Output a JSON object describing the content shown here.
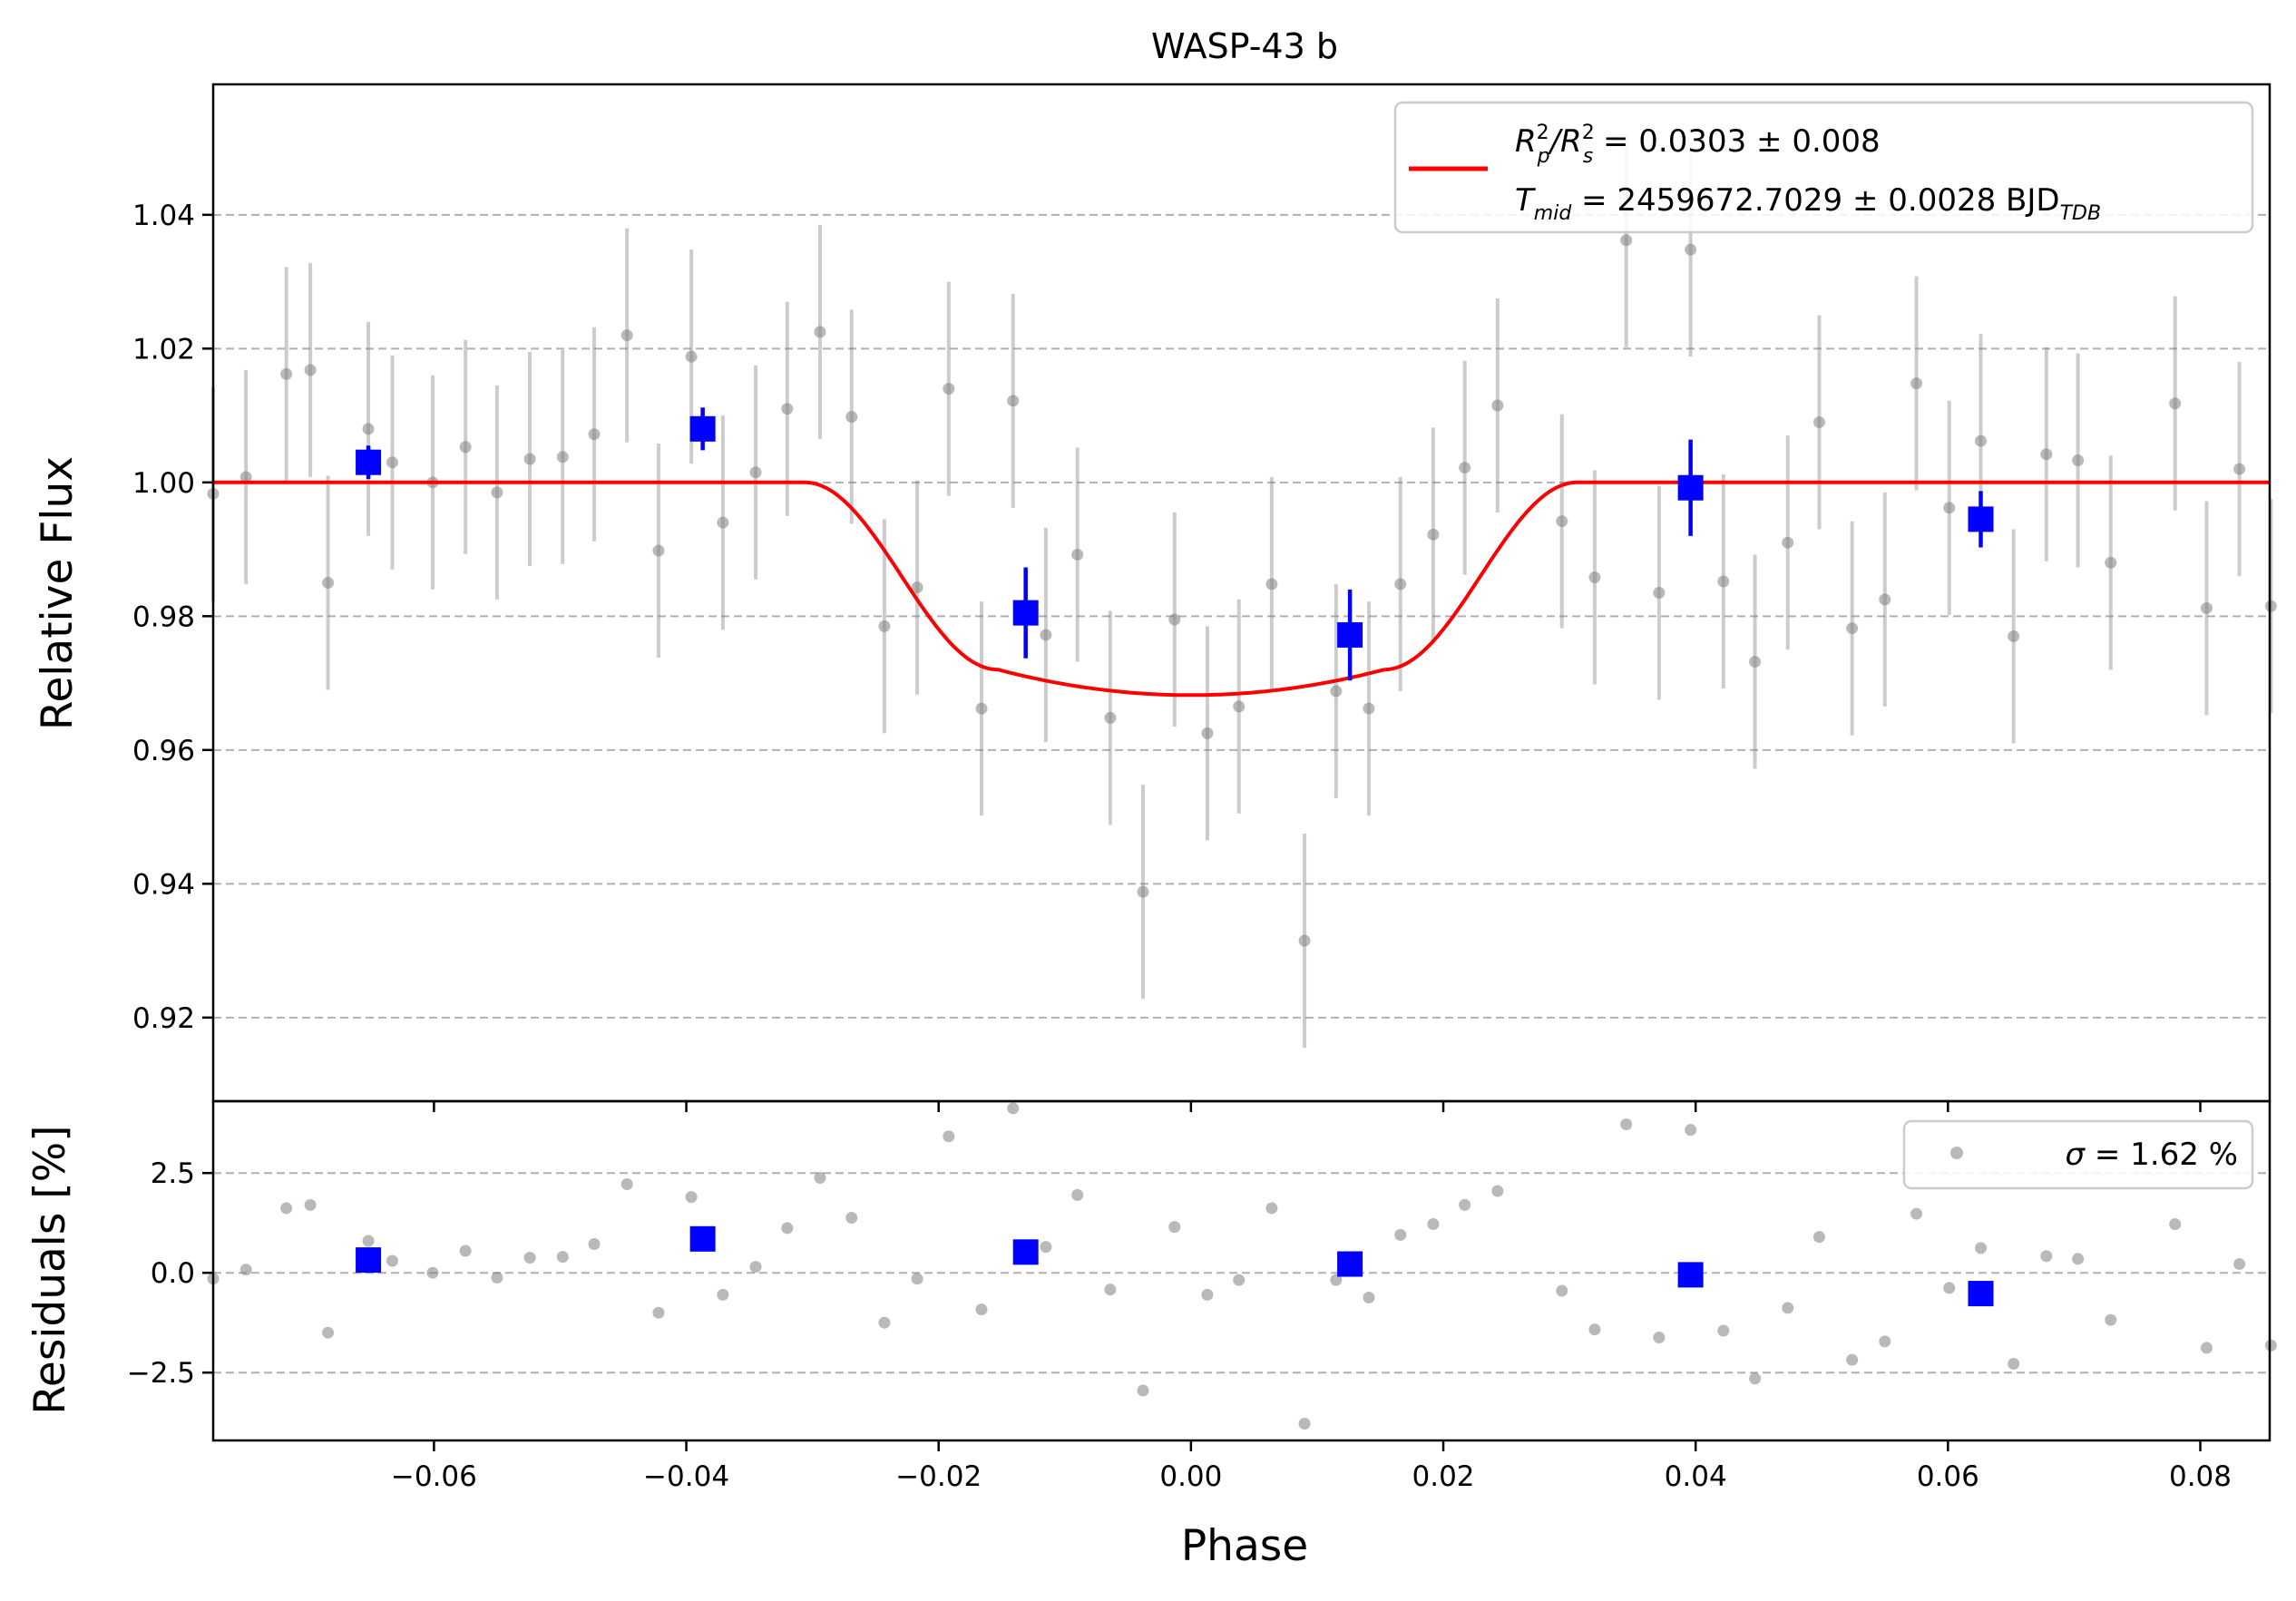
{
  "chart_data": [
    {
      "type": "scatter",
      "title": "WASP-43 b",
      "xlabel": "",
      "ylabel": "Relative Flux",
      "xlim": [
        -0.0775,
        0.0855
      ],
      "ylim": [
        0.9075,
        1.0595
      ],
      "grid": "horizontal dashed",
      "legend_position": "top-right",
      "legend": {
        "line1_prefix": "R",
        "line1_sup1": "2",
        "line1_sub1": "p",
        "line1_slash": "/R",
        "line1_sup2": "2",
        "line1_sub2": "s",
        "line1_value": " = 0.0303 ± 0.008",
        "line2_prefix": "T",
        "line2_sub": "mid",
        "line2_value": " = 2459672.7029 ± 0.0028 BJD",
        "line2_unit_sub": "TDB"
      },
      "y_ticks": [
        {
          "value": 0.92,
          "label": "0.92"
        },
        {
          "value": 0.94,
          "label": "0.94"
        },
        {
          "value": 0.96,
          "label": "0.96"
        },
        {
          "value": 0.98,
          "label": "0.98"
        },
        {
          "value": 1.0,
          "label": "1.00"
        },
        {
          "value": 1.02,
          "label": "1.02"
        },
        {
          "value": 1.04,
          "label": "1.04"
        }
      ],
      "model_line": {
        "color": "#ff0000",
        "baseline": 1.0,
        "depth": 0.0318,
        "contact_points": [
          -0.0306,
          -0.0153,
          0.0153,
          0.0306
        ]
      },
      "raw_points": {
        "color": "#808080",
        "x": [
          -0.0775,
          -0.0749,
          -0.0717,
          -0.0698,
          -0.0684,
          -0.0652,
          -0.0633,
          -0.0601,
          -0.0575,
          -0.055,
          -0.0524,
          -0.0498,
          -0.0473,
          -0.0447,
          -0.0422,
          -0.0396,
          -0.0371,
          -0.0345,
          -0.032,
          -0.0294,
          -0.0269,
          -0.0243,
          -0.0217,
          -0.0192,
          -0.0166,
          -0.0141,
          -0.0115,
          -0.009,
          -0.0064,
          -0.0038,
          -0.0013,
          0.0013,
          0.0038,
          0.0064,
          0.009,
          0.0115,
          0.0141,
          0.0166,
          0.0192,
          0.0217,
          0.0243,
          0.0294,
          0.032,
          0.0345,
          0.0371,
          0.0396,
          0.0422,
          0.0447,
          0.0473,
          0.0498,
          0.0524,
          0.055,
          0.0575,
          0.0601,
          0.0626,
          0.0652,
          0.0678,
          0.0703,
          0.0729,
          0.078,
          0.0805,
          0.0831,
          0.0856
        ],
        "y": [
          0.9983,
          1.0008,
          1.0162,
          1.0168,
          0.985,
          1.008,
          1.003,
          1.0,
          1.0053,
          0.9985,
          1.0035,
          1.0038,
          1.0072,
          1.022,
          0.9898,
          1.0188,
          0.994,
          1.0015,
          1.011,
          1.0225,
          1.0098,
          0.9785,
          0.9843,
          1.014,
          0.9662,
          1.0122,
          0.9772,
          0.9892,
          0.9648,
          0.9388,
          0.9795,
          0.9625,
          0.9665,
          0.9848,
          0.9315,
          0.9688,
          0.9662,
          0.9848,
          0.9922,
          1.0022,
          1.0115,
          0.9942,
          0.9858,
          1.0362,
          0.9835,
          1.0348,
          0.9852,
          0.9732,
          0.991,
          1.009,
          0.9782,
          0.9825,
          1.0148,
          0.9962,
          1.0062,
          0.977,
          1.0042,
          1.0033,
          0.988,
          1.0118,
          0.9812,
          1.002,
          0.9815
        ],
        "err": [
          0.016,
          0.016,
          0.016,
          0.016,
          0.016,
          0.016,
          0.016,
          0.016,
          0.016,
          0.016,
          0.016,
          0.016,
          0.016,
          0.016,
          0.016,
          0.016,
          0.016,
          0.016,
          0.016,
          0.016,
          0.016,
          0.016,
          0.016,
          0.016,
          0.016,
          0.016,
          0.016,
          0.016,
          0.016,
          0.016,
          0.016,
          0.016,
          0.016,
          0.016,
          0.016,
          0.016,
          0.016,
          0.016,
          0.016,
          0.016,
          0.016,
          0.016,
          0.016,
          0.016,
          0.016,
          0.016,
          0.016,
          0.016,
          0.016,
          0.016,
          0.016,
          0.016,
          0.016,
          0.016,
          0.016,
          0.016,
          0.016,
          0.016,
          0.016,
          0.016,
          0.016,
          0.016,
          0.016
        ]
      },
      "binned_points": {
        "color": "#0000ff",
        "x": [
          -0.0652,
          -0.0387,
          -0.0131,
          0.0126,
          0.0396,
          0.0626
        ],
        "y": [
          1.003,
          1.008,
          0.9805,
          0.9772,
          0.9992,
          0.9945
        ],
        "err": [
          0.0025,
          0.0032,
          0.0068,
          0.0068,
          0.0072,
          0.0042
        ]
      }
    },
    {
      "type": "scatter",
      "title": "",
      "xlabel": "Phase",
      "ylabel": "Residuals [%]",
      "xlim": [
        -0.0775,
        0.0855
      ],
      "ylim": [
        -4.2,
        4.3
      ],
      "grid": "horizontal dashed",
      "legend_position": "top-right",
      "legend": {
        "sigma_symbol": "σ",
        "sigma_value": " = 1.62 %"
      },
      "x_ticks": [
        {
          "value": -0.06,
          "label": "−0.06"
        },
        {
          "value": -0.04,
          "label": "−0.04"
        },
        {
          "value": -0.02,
          "label": "−0.02"
        },
        {
          "value": 0.0,
          "label": "0.00"
        },
        {
          "value": 0.02,
          "label": "0.02"
        },
        {
          "value": 0.04,
          "label": "0.04"
        },
        {
          "value": 0.06,
          "label": "0.06"
        },
        {
          "value": 0.08,
          "label": "0.08"
        }
      ],
      "y_ticks": [
        {
          "value": -2.5,
          "label": "−2.5"
        },
        {
          "value": 0.0,
          "label": "0.0"
        },
        {
          "value": 2.5,
          "label": "2.5"
        }
      ],
      "raw_points": {
        "color": "#808080",
        "x": [
          -0.0775,
          -0.0749,
          -0.0717,
          -0.0698,
          -0.0684,
          -0.0652,
          -0.0633,
          -0.0601,
          -0.0575,
          -0.055,
          -0.0524,
          -0.0498,
          -0.0473,
          -0.0447,
          -0.0422,
          -0.0396,
          -0.0371,
          -0.0345,
          -0.032,
          -0.0294,
          -0.0269,
          -0.0243,
          -0.0217,
          -0.0192,
          -0.0166,
          -0.0141,
          -0.0115,
          -0.009,
          -0.0064,
          -0.0038,
          -0.0013,
          0.0013,
          0.0038,
          0.0064,
          0.009,
          0.0115,
          0.0141,
          0.0166,
          0.0192,
          0.0217,
          0.0243,
          0.0294,
          0.032,
          0.0345,
          0.0371,
          0.0396,
          0.0422,
          0.0447,
          0.0473,
          0.0498,
          0.0524,
          0.055,
          0.0575,
          0.0601,
          0.0626,
          0.0652,
          0.0678,
          0.0703,
          0.0729,
          0.078,
          0.0805,
          0.0831,
          0.0856
        ],
        "y": [
          -0.15,
          0.08,
          1.62,
          1.7,
          -1.5,
          0.8,
          0.3,
          0.0,
          0.55,
          -0.12,
          0.38,
          0.4,
          0.72,
          2.22,
          -1.0,
          1.9,
          -0.55,
          0.15,
          1.12,
          2.38,
          1.38,
          -1.25,
          -0.15,
          3.42,
          -0.92,
          4.12,
          0.65,
          1.95,
          -0.42,
          -2.95,
          1.15,
          -0.55,
          -0.18,
          1.62,
          -3.78,
          -0.18,
          -0.62,
          0.95,
          1.22,
          1.7,
          2.05,
          -0.45,
          -1.42,
          3.72,
          -1.62,
          3.58,
          -1.45,
          -2.65,
          -0.88,
          0.9,
          -2.18,
          -1.72,
          1.48,
          -0.38,
          0.62,
          -2.28,
          0.42,
          0.35,
          -1.18,
          1.22,
          -1.88,
          0.22,
          -1.82
        ]
      },
      "binned_points": {
        "color": "#0000ff",
        "x": [
          -0.0652,
          -0.0387,
          -0.0131,
          0.0126,
          0.0396,
          0.0626
        ],
        "y": [
          0.32,
          0.85,
          0.52,
          0.22,
          -0.05,
          -0.52
        ]
      }
    }
  ]
}
